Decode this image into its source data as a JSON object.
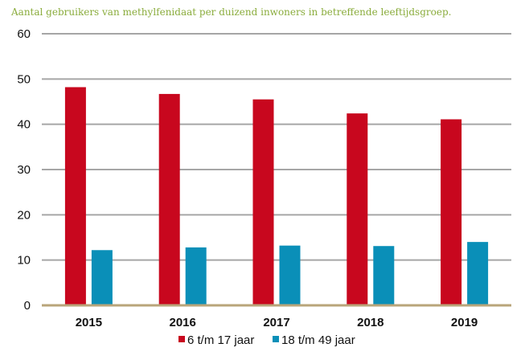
{
  "chart_data": {
    "type": "bar",
    "title": "Aantal gebruikers van methylfenidaat per duizend inwoners in betreffende leeftijdsgroep.",
    "xlabel": "",
    "ylabel": "",
    "categories": [
      "2015",
      "2016",
      "2017",
      "2018",
      "2019"
    ],
    "series": [
      {
        "name": "6 t/m 17 jaar",
        "color": "#c8071e",
        "values": [
          48.2,
          46.7,
          45.5,
          42.4,
          41.1
        ]
      },
      {
        "name": "18 t/m 49 jaar",
        "color": "#0a8fb8",
        "values": [
          12.2,
          12.8,
          13.2,
          13.1,
          14.0
        ]
      }
    ],
    "ylim": [
      0,
      60
    ],
    "yticks": [
      "0",
      "10",
      "20",
      "30",
      "40",
      "50",
      "60"
    ],
    "ytick_values": [
      0,
      10,
      20,
      30,
      40,
      50,
      60
    ],
    "grid": true,
    "gridline_color": "#a6a6a6",
    "axis_color": "#b9a57a",
    "title_color": "#8aac3c",
    "legend_position": "bottom-center"
  }
}
